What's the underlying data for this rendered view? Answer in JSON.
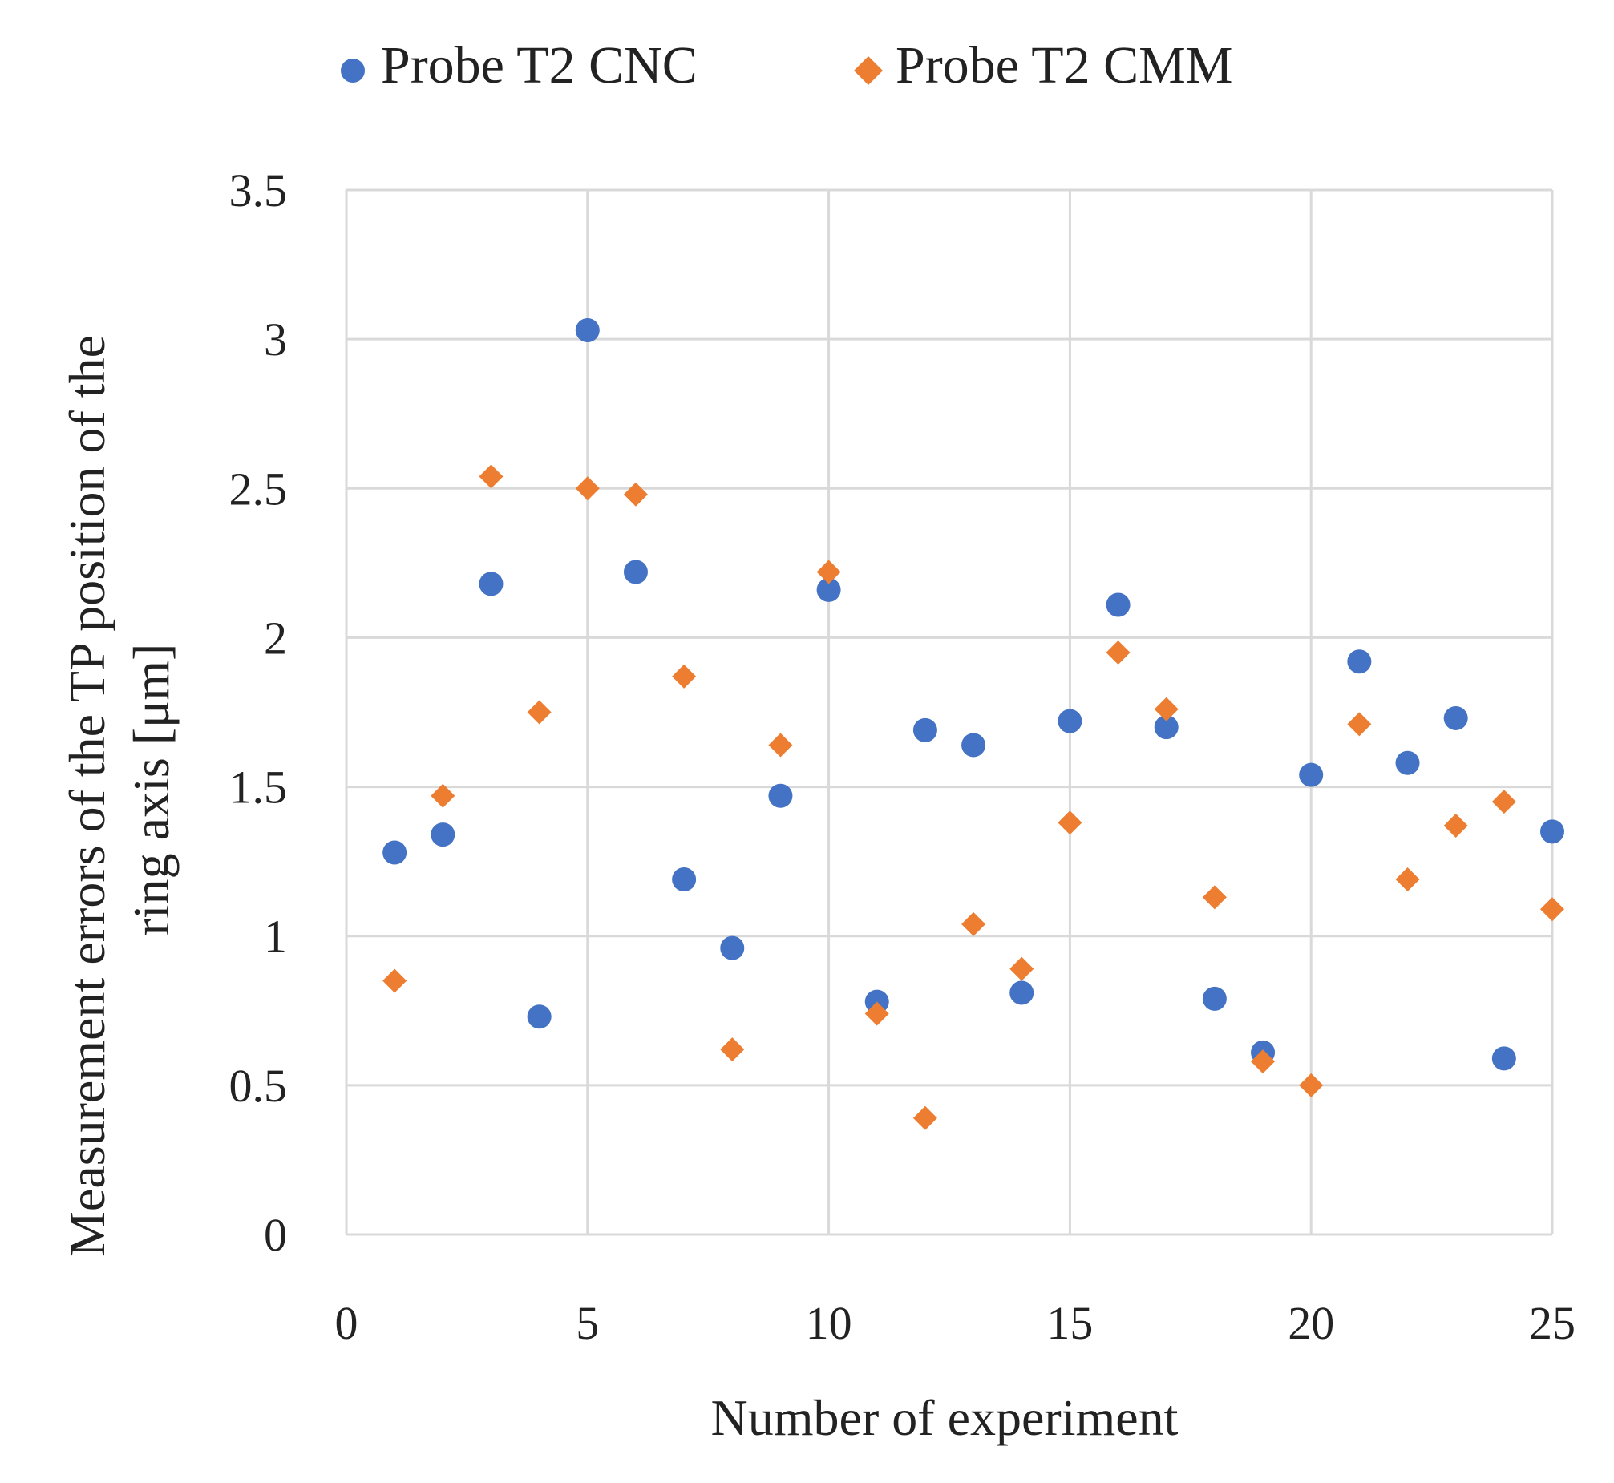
{
  "chart_data": {
    "type": "scatter",
    "xlabel": "Number of experiment",
    "ylabel": "Measurement errors of the TP position of the ring axis [μm]",
    "ylabel_lines": [
      "Measurement errors of the TP position of the",
      "ring axis [μm]"
    ],
    "xlim": [
      0,
      25
    ],
    "ylim": [
      0,
      3.5
    ],
    "x_ticks": [
      "0",
      "5",
      "10",
      "15",
      "20",
      "25"
    ],
    "y_ticks": [
      "0",
      "0.5",
      "1",
      "1.5",
      "2",
      "2.5",
      "3",
      "3.5"
    ],
    "grid": true,
    "legend_position": "top",
    "series": [
      {
        "name": "Probe T2 CNC",
        "marker": "circle",
        "color": "#4472c4",
        "x": [
          1,
          2,
          3,
          4,
          5,
          6,
          7,
          8,
          9,
          10,
          11,
          12,
          13,
          14,
          15,
          16,
          17,
          18,
          19,
          20,
          21,
          22,
          23,
          24,
          25
        ],
        "y": [
          1.28,
          1.34,
          2.18,
          0.73,
          3.03,
          2.22,
          1.19,
          0.96,
          1.47,
          2.16,
          0.78,
          1.69,
          1.64,
          0.81,
          1.72,
          2.11,
          1.7,
          0.79,
          0.61,
          1.54,
          1.92,
          1.58,
          1.73,
          0.59,
          1.35
        ]
      },
      {
        "name": "Probe T2 CMM",
        "marker": "diamond",
        "color": "#ed7d31",
        "x": [
          1,
          2,
          3,
          4,
          5,
          6,
          7,
          8,
          9,
          10,
          11,
          12,
          13,
          14,
          15,
          16,
          17,
          18,
          19,
          20,
          21,
          22,
          23,
          24,
          25
        ],
        "y": [
          0.85,
          1.47,
          2.54,
          1.75,
          2.5,
          2.48,
          1.87,
          0.62,
          1.64,
          2.22,
          0.74,
          0.39,
          1.04,
          0.89,
          1.38,
          1.95,
          1.76,
          1.13,
          0.58,
          0.5,
          1.71,
          1.19,
          1.37,
          1.45,
          1.09
        ]
      }
    ]
  }
}
